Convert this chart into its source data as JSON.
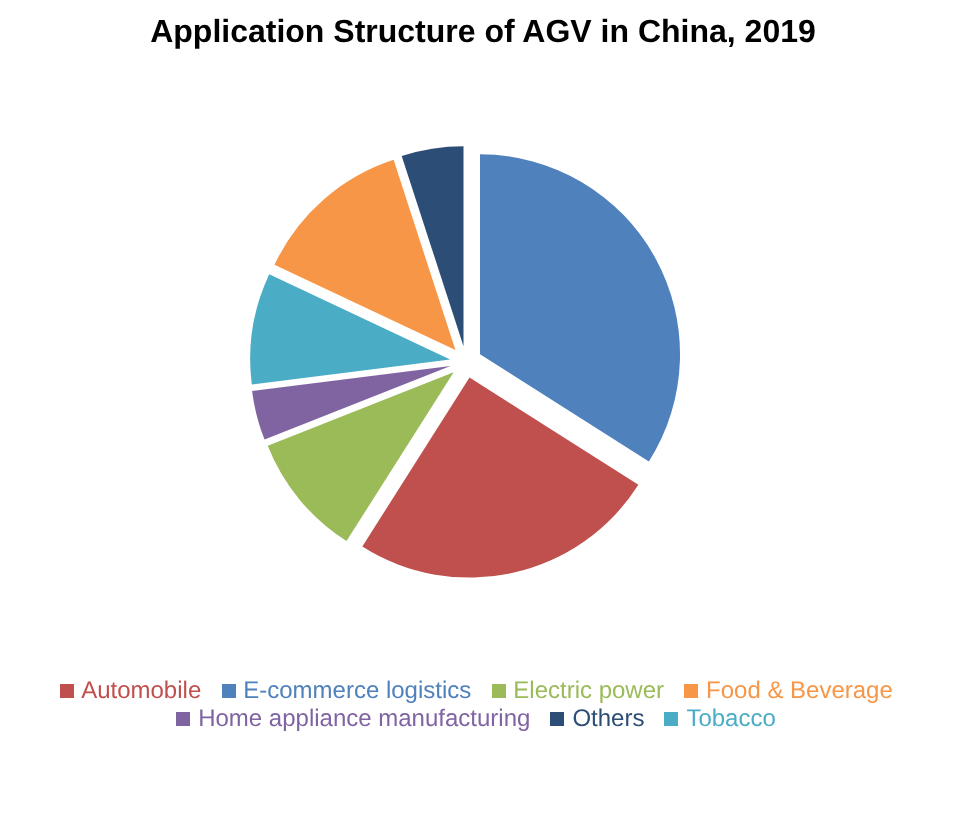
{
  "chart_data": {
    "type": "pie",
    "title": "Application Structure of AGV in China, 2019",
    "categories": [
      "E-commerce logistics",
      "Automobile",
      "Electric power",
      "Home appliance manufacturing",
      "Tobacco",
      "Food & Beverage",
      "Others"
    ],
    "values": [
      34,
      25,
      10,
      4,
      9,
      13,
      5
    ],
    "colors": [
      "#4f81bd",
      "#c0504d",
      "#9bbb59",
      "#8064a2",
      "#4bacc6",
      "#f79646",
      "#2c4d75"
    ],
    "legend": "bottom"
  }
}
